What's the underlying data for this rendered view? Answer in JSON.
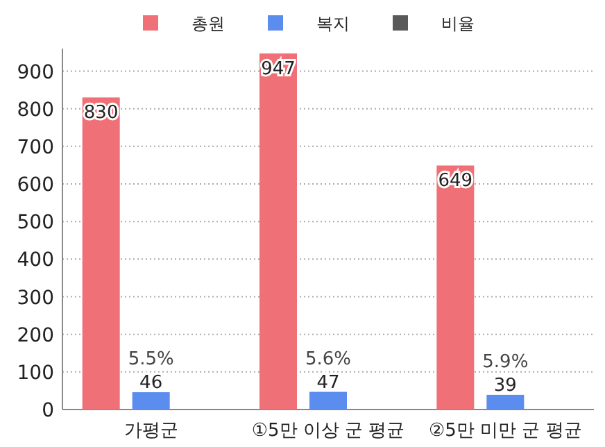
{
  "chart_data": {
    "type": "bar",
    "categories": [
      "가평군",
      "①5만 이상 군 평균",
      "②5만 미만 군 평균"
    ],
    "series": [
      {
        "name": "총원",
        "color": "#f07077",
        "values": [
          830,
          947,
          649
        ]
      },
      {
        "name": "복지",
        "color": "#5b8def",
        "values": [
          46,
          47,
          39
        ]
      },
      {
        "name": "비율",
        "color": "#595959",
        "values": [
          null,
          null,
          null
        ]
      }
    ],
    "annotations": [
      {
        "text": "5.5%",
        "x": "가평군",
        "y": 46
      },
      {
        "text": "5.6%",
        "x": "①5만 이상 군 평균",
        "y": 47
      },
      {
        "text": "5.9%",
        "x": "②5만 미만 군 평균",
        "y": 39
      }
    ],
    "data_labels": true,
    "ylim": [
      0,
      960
    ],
    "yticks": [
      0,
      100,
      200,
      300,
      400,
      500,
      600,
      700,
      800,
      900
    ],
    "grid": "y",
    "legend": "top"
  }
}
